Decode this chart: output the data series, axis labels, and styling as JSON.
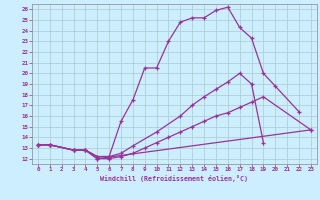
{
  "xlabel": "Windchill (Refroidissement éolien,°C)",
  "bg_color": "#cceeff",
  "line_color": "#993399",
  "grid_color": "#aacccc",
  "xlim": [
    -0.5,
    23.5
  ],
  "ylim": [
    11.5,
    26.5
  ],
  "xticks": [
    0,
    1,
    2,
    3,
    4,
    5,
    6,
    7,
    8,
    9,
    10,
    11,
    12,
    13,
    14,
    15,
    16,
    17,
    18,
    19,
    20,
    21,
    22,
    23
  ],
  "yticks": [
    12,
    13,
    14,
    15,
    16,
    17,
    18,
    19,
    20,
    21,
    22,
    23,
    24,
    25,
    26
  ],
  "line1_x": [
    0,
    1,
    3,
    4,
    5,
    6,
    7,
    8,
    9,
    10,
    11,
    12,
    13,
    14,
    15,
    16,
    17,
    18,
    19,
    23
  ],
  "line1_y": [
    13.3,
    13.3,
    12.8,
    12.8,
    12.0,
    12.0,
    12.2,
    12.5,
    13.0,
    13.5,
    14.0,
    14.5,
    15.0,
    15.5,
    16.0,
    16.3,
    16.8,
    17.3,
    17.8,
    14.7
  ],
  "line2_x": [
    0,
    1,
    3,
    4,
    5,
    6,
    7,
    8,
    9,
    10,
    11,
    12,
    13,
    14,
    15,
    16,
    17,
    18,
    19,
    20,
    22
  ],
  "line2_y": [
    13.3,
    13.3,
    12.8,
    12.8,
    12.2,
    12.2,
    15.5,
    17.5,
    20.5,
    20.5,
    23.0,
    24.8,
    25.2,
    25.2,
    25.9,
    26.2,
    24.3,
    23.3,
    20.0,
    18.8,
    16.4
  ],
  "line3_x": [
    0,
    1,
    3,
    4,
    5,
    6,
    7,
    8,
    10,
    12,
    13,
    14,
    15,
    16,
    17,
    18,
    19
  ],
  "line3_y": [
    13.3,
    13.3,
    12.8,
    12.8,
    12.2,
    12.2,
    12.5,
    13.2,
    14.5,
    16.0,
    17.0,
    17.8,
    18.5,
    19.2,
    20.0,
    19.0,
    13.5
  ],
  "line4_x": [
    0,
    1,
    3,
    4,
    5,
    23
  ],
  "line4_y": [
    13.3,
    13.3,
    12.8,
    12.8,
    12.0,
    14.7
  ]
}
